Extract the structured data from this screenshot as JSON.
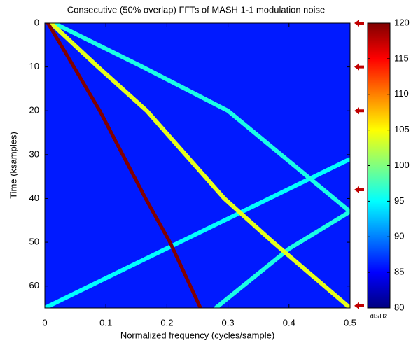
{
  "chart_data": {
    "type": "heatmap",
    "title": "Consecutive (50% overlap) FFTs of MASH 1-1 modulation noise",
    "x_label": "Normalized frequency (cycles/sample)",
    "y_label": "Time (ksamples)",
    "xlim": [
      0,
      0.5
    ],
    "xticks": [
      0,
      0.1,
      0.2,
      0.3,
      0.4,
      0.5
    ],
    "ylim": [
      0,
      65
    ],
    "yticks": [
      0,
      10,
      20,
      30,
      40,
      50,
      60
    ],
    "y_reversed": true,
    "colorbar_label": "dB/Hz",
    "clim": [
      80,
      120
    ],
    "cticks": [
      80,
      85,
      90,
      95,
      100,
      105,
      110,
      115,
      120
    ],
    "background_level": 86,
    "tracks": [
      {
        "level": 95,
        "x": [
          0.0,
          0.25,
          0.5
        ],
        "y": [
          65,
          48,
          31
        ]
      },
      {
        "level": 96,
        "x": [
          0.015,
          0.16,
          0.3,
          0.5,
          0.4,
          0.28
        ],
        "y": [
          0,
          10,
          20,
          43,
          51.5,
          65
        ]
      },
      {
        "level": 104,
        "x": [
          0.01,
          0.087,
          0.167,
          0.294,
          0.374,
          0.5
        ],
        "y": [
          0,
          10,
          20,
          40,
          50,
          65
        ]
      },
      {
        "level": 120,
        "x": [
          0.005,
          0.09,
          0.165,
          0.205,
          0.255
        ],
        "y": [
          0,
          20,
          40,
          50,
          65
        ]
      }
    ],
    "marker_color": "#c00000",
    "markers": [
      0,
      10,
      20,
      38,
      64.5
    ]
  }
}
